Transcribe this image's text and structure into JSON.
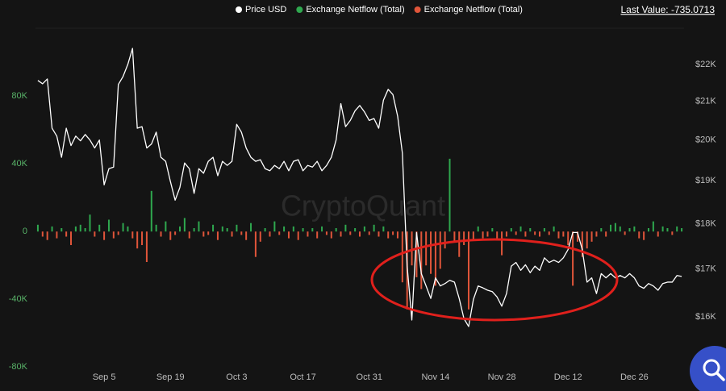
{
  "chart_data": {
    "type": "bar-line",
    "legend": "top",
    "last_value": "Last Value: -735.0713",
    "watermark": "CryptoQuant",
    "categories": [
      null,
      null,
      null,
      null,
      null,
      null,
      null,
      null,
      null,
      null,
      null,
      null,
      null,
      null,
      "Sep 5",
      null,
      null,
      null,
      null,
      null,
      null,
      null,
      null,
      null,
      null,
      null,
      null,
      null,
      "Sep 19",
      null,
      null,
      null,
      null,
      null,
      null,
      null,
      null,
      null,
      null,
      null,
      null,
      null,
      "Oct 3",
      null,
      null,
      null,
      null,
      null,
      null,
      null,
      null,
      null,
      null,
      null,
      null,
      null,
      "Oct 17",
      null,
      null,
      null,
      null,
      null,
      null,
      null,
      null,
      null,
      null,
      null,
      null,
      null,
      "Oct 31",
      null,
      null,
      null,
      null,
      null,
      null,
      null,
      null,
      null,
      null,
      null,
      null,
      null,
      "Nov 14",
      null,
      null,
      null,
      null,
      null,
      null,
      null,
      null,
      null,
      null,
      null,
      null,
      null,
      "Nov 28",
      null,
      null,
      null,
      null,
      null,
      null,
      null,
      null,
      null,
      null,
      null,
      null,
      null,
      "Dec 12",
      null,
      null,
      null,
      null,
      null,
      null,
      null,
      null,
      null,
      null,
      null,
      null,
      null,
      "Dec 26",
      null,
      null,
      null,
      null,
      null,
      null,
      null,
      null,
      null,
      null
    ],
    "ylim": [
      -82000,
      132000
    ],
    "yticks": [
      {
        "value": 80000,
        "label": "80K"
      },
      {
        "value": 40000,
        "label": "40K"
      },
      0,
      {
        "value": -40000,
        "label": "-40K"
      },
      {
        "value": -80000,
        "label": "-80K"
      }
    ],
    "y2lim": [
      14960,
      23620
    ],
    "y2log": true,
    "y2ticks": [
      {
        "value": 22000,
        "label": "$22K"
      },
      {
        "value": 21000,
        "label": "$21K"
      },
      {
        "value": 20000,
        "label": "$20K"
      },
      {
        "value": 19000,
        "label": "$19K"
      },
      {
        "value": 18000,
        "label": "$18K"
      },
      {
        "value": 17000,
        "label": "$17K"
      },
      {
        "value": 16000,
        "label": "$16K"
      }
    ],
    "grid": false,
    "series": [
      {
        "name": "Exchange Netflow (Total)",
        "color": "#2fa84f",
        "type": "bar",
        "values": [
          4000,
          null,
          null,
          3000,
          null,
          2000,
          null,
          null,
          3000,
          4000,
          2000,
          10000,
          null,
          4000,
          null,
          7000,
          null,
          null,
          5000,
          3000,
          null,
          null,
          null,
          null,
          24000,
          4000,
          null,
          6000,
          null,
          null,
          3000,
          8000,
          null,
          2000,
          6000,
          null,
          null,
          4000,
          null,
          3000,
          2000,
          null,
          4000,
          null,
          null,
          5000,
          null,
          null,
          2000,
          null,
          6000,
          null,
          3000,
          null,
          3000,
          null,
          2000,
          null,
          2000,
          null,
          3000,
          null,
          null,
          2000,
          null,
          4000,
          null,
          2000,
          null,
          3000,
          null,
          4000,
          null,
          3000,
          null,
          null,
          null,
          null,
          null,
          null,
          null,
          null,
          null,
          null,
          null,
          null,
          null,
          43000,
          null,
          null,
          null,
          null,
          null,
          3000,
          null,
          null,
          2000,
          null,
          null,
          null,
          2000,
          null,
          3000,
          null,
          2000,
          null,
          null,
          2000,
          null,
          3000,
          null,
          null,
          null,
          null,
          null,
          null,
          null,
          null,
          null,
          2000,
          null,
          4000,
          5000,
          3000,
          null,
          2000,
          3000,
          null,
          null,
          2000,
          6000,
          null,
          3000,
          2000,
          null,
          3000,
          2000
        ]
      },
      {
        "name": "Exchange Netflow (Total)",
        "color": "#e0553a",
        "type": "bar",
        "values": [
          null,
          -3000,
          -5000,
          null,
          -4000,
          null,
          -3000,
          -8000,
          null,
          null,
          null,
          null,
          -3000,
          null,
          -5000,
          null,
          -4000,
          -2000,
          null,
          null,
          -4000,
          -10000,
          -8000,
          -18000,
          null,
          null,
          -3000,
          null,
          -5000,
          -2000,
          null,
          null,
          -4000,
          null,
          null,
          -3000,
          -2000,
          null,
          -5000,
          null,
          null,
          -3000,
          null,
          -2000,
          -5000,
          null,
          -15000,
          -6000,
          null,
          -3000,
          null,
          -2000,
          null,
          -4000,
          null,
          -5000,
          null,
          -3000,
          null,
          -4000,
          null,
          -2000,
          -4000,
          null,
          -3000,
          null,
          -2000,
          null,
          -3000,
          null,
          -2000,
          null,
          -3000,
          null,
          -4000,
          -2000,
          -4000,
          -30000,
          -46000,
          -20000,
          -27000,
          -34000,
          -20000,
          -25000,
          -32000,
          -22000,
          -10000,
          null,
          -6000,
          -15000,
          -8000,
          -46000,
          -5000,
          null,
          -4000,
          -3000,
          null,
          -5000,
          -14000,
          -3000,
          null,
          -2000,
          null,
          -3000,
          null,
          -2000,
          -3000,
          null,
          -2000,
          null,
          -4000,
          -3000,
          -8000,
          -32000,
          -6000,
          -15000,
          -10000,
          -6000,
          -3000,
          null,
          -3000,
          null,
          null,
          null,
          -2000,
          null,
          null,
          -4000,
          -5000,
          null,
          null,
          -3000,
          null,
          null,
          -2000,
          null,
          null
        ]
      },
      {
        "name": "Price USD",
        "color": "#ffffff",
        "type": "line",
        "axis": "y2",
        "values": [
          21560,
          21470,
          21600,
          20300,
          20100,
          19570,
          20300,
          19860,
          20100,
          19980,
          20140,
          20000,
          19800,
          20000,
          18900,
          19290,
          19330,
          21450,
          21670,
          22000,
          22450,
          20300,
          20340,
          19800,
          19900,
          20200,
          19570,
          19470,
          18980,
          18540,
          18840,
          19430,
          19290,
          18700,
          19290,
          19180,
          19470,
          19570,
          19120,
          19470,
          19370,
          19470,
          20400,
          20200,
          19800,
          19570,
          19470,
          19510,
          19290,
          19240,
          19370,
          19290,
          19470,
          19240,
          19470,
          19510,
          19240,
          19370,
          19330,
          19470,
          19240,
          19370,
          19570,
          20000,
          20940,
          20340,
          20500,
          20750,
          20890,
          20720,
          20500,
          20550,
          20300,
          21030,
          21320,
          21180,
          20610,
          19670,
          17070,
          15940,
          17800,
          16900,
          16640,
          16380,
          16810,
          16640,
          16690,
          16760,
          16720,
          16380,
          15970,
          15810,
          16360,
          16640,
          16600,
          16550,
          16520,
          16410,
          16220,
          16480,
          17060,
          17140,
          16970,
          17090,
          16920,
          17060,
          16970,
          17240,
          17140,
          17190,
          17140,
          17240,
          17420,
          17800,
          17800,
          17420,
          16720,
          16810,
          16480,
          16900,
          16810,
          16900,
          16810,
          16860,
          16810,
          16900,
          16810,
          16640,
          16590,
          16690,
          16640,
          16550,
          16690,
          16720,
          16720,
          16860,
          16840
        ]
      }
    ]
  }
}
